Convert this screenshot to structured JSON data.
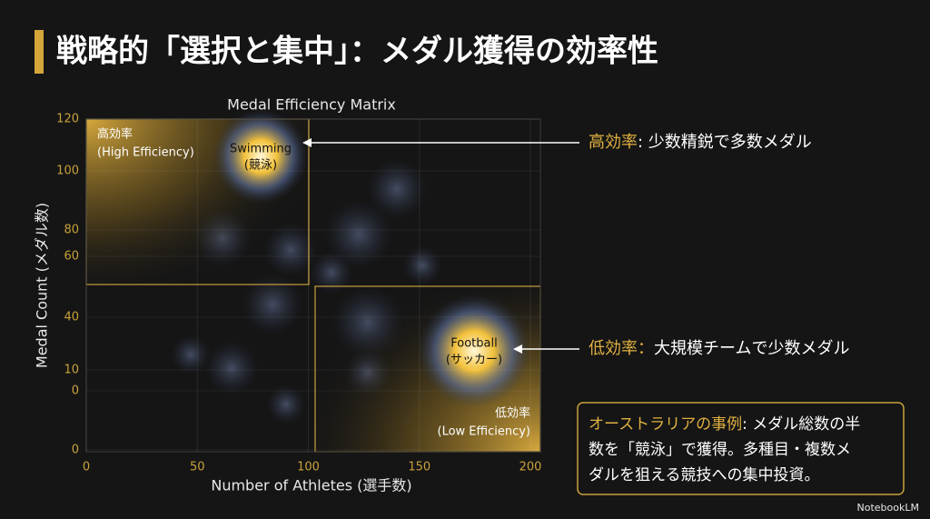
{
  "title": "戦略的「選択と集中」：メダル獲得の効率性",
  "chart_data": {
    "type": "heatmap",
    "title": "Medal Efficiency Matrix",
    "x_label": "Number of Athletes (選手数)",
    "y_label": "Medal Count (メダル数)",
    "xlim": [
      0,
      200
    ],
    "xticks": [
      0,
      50,
      100,
      150,
      200
    ],
    "y_tick_labels": [
      "120",
      "100",
      "80",
      "60",
      "40",
      "10",
      "0",
      "0"
    ],
    "regions": [
      {
        "lines": [
          "高効率",
          "(High Efficiency)"
        ]
      },
      {
        "lines": [
          "低効率",
          "(Low Efficiency)"
        ]
      }
    ],
    "hotspots": [
      {
        "lines": [
          "Swimming",
          "(競泳)"
        ]
      },
      {
        "lines": [
          "Football",
          "(サッカー)"
        ]
      }
    ]
  },
  "callouts": [
    {
      "highlight": "高効率",
      "text": ": 少数精鋭で多数メダル"
    },
    {
      "highlight": "低効率：",
      "text": "大規模チームで少数メダル"
    }
  ],
  "case_box": {
    "highlight": "オーストラリアの事例",
    "lines": [
      ": メダル総数の半",
      "数を「競泳」で獲得。多種目・複数メ",
      "ダルを狙える競技への集中投資。"
    ]
  },
  "footer": "NotebookLM"
}
